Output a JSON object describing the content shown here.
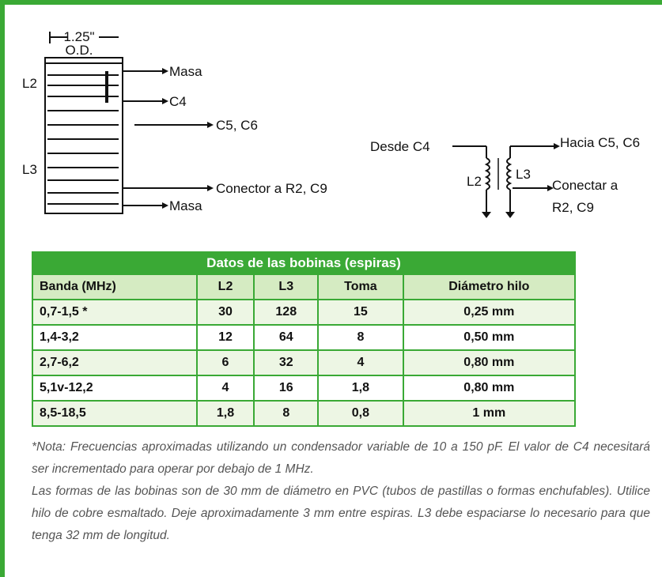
{
  "diagram": {
    "dimension": [
      "1.25\"",
      "O.D."
    ],
    "coil_labels": [
      "L2",
      "L3"
    ],
    "coil_taps": [
      "Masa",
      "C4",
      "C5, C6",
      "Conector a R2, C9",
      "Masa"
    ],
    "schematic": {
      "input": "Desde C4",
      "output": "Hacia C5, C6",
      "l2": "L2",
      "l3": "L3",
      "connect": [
        "Conectar a",
        "R2, C9"
      ]
    }
  },
  "table": {
    "title": "Datos de las bobinas (espiras)",
    "header": [
      "Banda (MHz)",
      "L2",
      "L3",
      "Toma",
      "Diámetro hilo"
    ],
    "rows": [
      [
        "0,7-1,5 *",
        "30",
        "128",
        "15",
        "0,25 mm"
      ],
      [
        "1,4-3,2",
        "12",
        "64",
        "8",
        "0,50 mm"
      ],
      [
        "2,7-6,2",
        "6",
        "32",
        "4",
        "0,80 mm"
      ],
      [
        "5,1v-12,2",
        "4",
        "16",
        "1,8",
        "0,80 mm"
      ],
      [
        "8,5-18,5",
        "1,8",
        "8",
        "0,8",
        "1 mm"
      ]
    ]
  },
  "notes": [
    "*Nota: Frecuencias aproximadas utilizando un condensador variable de 10 a 150 pF. El valor de C4 necesitará ser incrementado para operar por debajo de 1 MHz.",
    "Las formas de las bobinas son de 30 mm de diámetro en PVC (tubos de pastillas o formas enchufables). Utilice hilo de cobre esmaltado. Deje aproximadamente 3 mm entre espiras. L3 debe espaciarse lo necesario para que tenga 32 mm de longitud."
  ]
}
